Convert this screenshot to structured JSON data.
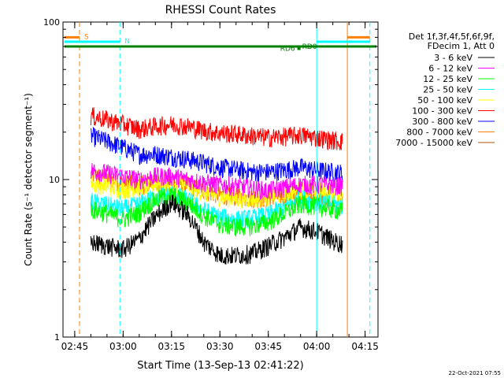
{
  "chart_data": {
    "type": "line",
    "title": "RHESSI Count Rates",
    "xlabel": "Start Time (13-Sep-13 02:41:22)",
    "ylabel": "Count Rate (s⁻¹ detector segment⁻¹)",
    "yscale": "log",
    "ylim": [
      1,
      100
    ],
    "xlim": [
      "02:41:22",
      "04:19:00"
    ],
    "x_ticks": [
      "02:45",
      "03:00",
      "03:15",
      "03:30",
      "03:45",
      "04:00",
      "04:15"
    ],
    "y_ticks": [
      "1",
      "10",
      "100"
    ],
    "grid": false,
    "legend_position": "right",
    "legend_header": [
      "Det 1f,3f,4f,5f,6f,9f,",
      "FDecim 1, Att 0"
    ],
    "series": [
      {
        "name": "3 - 6 keV",
        "color": "#000000",
        "x": [
          "02:50",
          "02:55",
          "03:00",
          "03:05",
          "03:10",
          "03:15",
          "03:20",
          "03:25",
          "03:30",
          "03:35",
          "03:40",
          "03:45",
          "03:50",
          "03:55",
          "04:00",
          "04:05",
          "04:08"
        ],
        "values": [
          4.0,
          3.8,
          3.6,
          4.2,
          5.8,
          7.2,
          6.0,
          4.0,
          3.3,
          3.3,
          3.4,
          3.8,
          4.3,
          5.0,
          4.7,
          4.1,
          3.9
        ]
      },
      {
        "name": "6 - 12 keV",
        "color": "#ff00ff",
        "x": [
          "02:50",
          "02:55",
          "03:00",
          "03:05",
          "03:10",
          "03:15",
          "03:20",
          "03:25",
          "03:30",
          "03:35",
          "03:40",
          "03:45",
          "03:50",
          "03:55",
          "04:00",
          "04:05",
          "04:08"
        ],
        "values": [
          11.5,
          11.0,
          10.5,
          10.0,
          10.5,
          10.5,
          10.0,
          9.6,
          9.3,
          9.1,
          8.8,
          8.5,
          8.9,
          9.3,
          9.3,
          9.2,
          9.1
        ]
      },
      {
        "name": "12 - 25 keV",
        "color": "#00ff00",
        "x": [
          "02:50",
          "02:55",
          "03:00",
          "03:05",
          "03:10",
          "03:15",
          "03:20",
          "03:25",
          "03:30",
          "03:35",
          "03:40",
          "03:45",
          "03:50",
          "03:55",
          "04:00",
          "04:05",
          "04:08"
        ],
        "values": [
          6.5,
          6.1,
          5.6,
          6.2,
          7.4,
          8.0,
          7.2,
          5.9,
          5.2,
          5.0,
          5.1,
          5.4,
          6.1,
          7.0,
          6.8,
          6.5,
          6.3
        ]
      },
      {
        "name": "25 - 50 keV",
        "color": "#00ffff",
        "x": [
          "02:50",
          "02:55",
          "03:00",
          "03:05",
          "03:10",
          "03:15",
          "03:20",
          "03:25",
          "03:30",
          "03:35",
          "03:40",
          "03:45",
          "03:50",
          "03:55",
          "04:00",
          "04:05",
          "04:08"
        ],
        "values": [
          7.3,
          6.9,
          6.5,
          7.0,
          7.8,
          8.2,
          7.4,
          6.4,
          5.8,
          5.6,
          5.7,
          6.0,
          6.7,
          7.6,
          7.3,
          7.0,
          6.8
        ]
      },
      {
        "name": "50 - 100 keV",
        "color": "#ffff00",
        "x": [
          "02:50",
          "02:55",
          "03:00",
          "03:05",
          "03:10",
          "03:15",
          "03:20",
          "03:25",
          "03:30",
          "03:35",
          "03:40",
          "03:45",
          "03:50",
          "03:55",
          "04:00",
          "04:05",
          "04:08"
        ],
        "values": [
          9.5,
          9.1,
          8.7,
          8.9,
          9.4,
          9.7,
          9.0,
          8.3,
          7.8,
          7.6,
          7.6,
          7.8,
          8.2,
          8.6,
          8.5,
          8.3,
          8.2
        ]
      },
      {
        "name": "100 - 300 keV",
        "color": "#ff0000",
        "x": [
          "02:50",
          "02:55",
          "03:00",
          "03:05",
          "03:10",
          "03:15",
          "03:20",
          "03:25",
          "03:30",
          "03:35",
          "03:40",
          "03:45",
          "03:50",
          "03:55",
          "04:00",
          "04:05",
          "04:08"
        ],
        "values": [
          25.5,
          24.0,
          22.5,
          21.0,
          21.8,
          22.5,
          21.8,
          20.5,
          19.8,
          19.5,
          19.0,
          18.5,
          18.8,
          19.2,
          18.5,
          17.8,
          17.5
        ]
      },
      {
        "name": "300 - 800 keV",
        "color": "#0000ff",
        "x": [
          "02:50",
          "02:55",
          "03:00",
          "03:05",
          "03:10",
          "03:15",
          "03:20",
          "03:25",
          "03:30",
          "03:35",
          "03:40",
          "03:45",
          "03:50",
          "03:55",
          "04:00",
          "04:05",
          "04:08"
        ],
        "values": [
          19.0,
          17.5,
          16.0,
          14.5,
          14.5,
          14.0,
          13.5,
          12.8,
          12.0,
          11.6,
          11.2,
          11.2,
          11.5,
          12.0,
          11.5,
          11.2,
          11.0
        ]
      },
      {
        "name": "800 - 7000 keV",
        "color": "#ff8000",
        "x": [
          "02:50",
          "02:55",
          "03:00",
          "03:05",
          "03:10",
          "03:15",
          "03:20",
          "03:25",
          "03:30",
          "03:35",
          "03:40",
          "03:45",
          "03:50",
          "03:55",
          "04:00",
          "04:05",
          "04:08"
        ],
        "values": [
          10.8,
          10.2,
          9.6,
          9.2,
          9.5,
          9.8,
          9.2,
          8.5,
          8.0,
          7.8,
          7.6,
          7.6,
          7.9,
          8.0,
          7.6,
          7.3,
          7.1
        ]
      },
      {
        "name": "7000 - 15000 keV",
        "color": "#b05000",
        "x": [],
        "values": []
      }
    ],
    "markers": [
      {
        "label": "S",
        "color": "#ff8000",
        "x": "02:46:30",
        "y": 80,
        "style": "dashed"
      },
      {
        "label": "N",
        "color": "#00ffff",
        "x": "02:59:00",
        "y": 75,
        "style": "dashed"
      },
      {
        "label": "",
        "color": "#00ffff",
        "x": "04:00:00",
        "y": 75,
        "style": "solid"
      },
      {
        "label": "",
        "color": "#ff8000",
        "x": "04:09:30",
        "y": 80,
        "style": "solid"
      },
      {
        "label": "",
        "color": "#00ffff",
        "x": "04:16:30",
        "y": 75,
        "style": "dashed"
      }
    ],
    "annotations": [
      {
        "label": "RD6",
        "color": "#008000",
        "y": 68
      },
      {
        "label": "RD0",
        "color": "#008000",
        "y": 70
      }
    ]
  },
  "footer": {
    "timestamp": "22-Oct-2021 07:55"
  }
}
